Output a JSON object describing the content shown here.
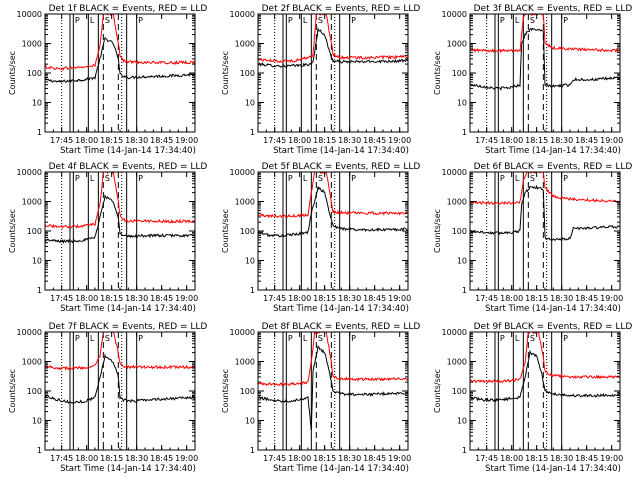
{
  "figure": {
    "ylabel": "Counts/sec",
    "xlabel": "Start Time (14-Jan-14 17:34:40)",
    "xtick_labels": [
      "17:45",
      "18:00",
      "18:15",
      "18:30",
      "18:45",
      "19:00"
    ],
    "ytick_labels": [
      "1",
      "10",
      "100",
      "1000",
      "10000"
    ],
    "colors": {
      "events": "#000000",
      "lld": "#ff0000",
      "axes": "#000000"
    }
  },
  "chart_data": [
    {
      "type": "line",
      "title": "Det 1f BLACK = Events, RED = LLD",
      "xlabel": "Start Time (14-Jan-14 17:34:40)",
      "ylabel": "Counts/sec",
      "x_unit": "minutes since start",
      "xlim": [
        0,
        90
      ],
      "ylim": [
        1,
        10000
      ],
      "yscale": "log",
      "solid_lines": [
        15,
        17,
        26,
        32,
        49,
        55
      ],
      "dashed_lines": [
        35,
        44
      ],
      "dotted_lines": [
        10,
        46
      ],
      "flag_letters": [
        "P",
        "L",
        "S",
        "P"
      ],
      "series": [
        {
          "name": "Events",
          "color": "#000000",
          "x": [
            0,
            8,
            16,
            24,
            30,
            33,
            36,
            41,
            44,
            45,
            47,
            50,
            60,
            75,
            90
          ],
          "y": [
            60,
            50,
            55,
            60,
            70,
            300,
            1500,
            1000,
            300,
            90,
            80,
            70,
            75,
            80,
            90
          ]
        },
        {
          "name": "LLD",
          "color": "#ff0000",
          "x": [
            0,
            8,
            16,
            24,
            30,
            33,
            35,
            38,
            41,
            44,
            45,
            47,
            50,
            60,
            75,
            90
          ],
          "y": [
            160,
            140,
            150,
            160,
            180,
            800,
            10000,
            10000,
            10000,
            1000,
            400,
            260,
            240,
            230,
            220,
            230
          ]
        }
      ]
    },
    {
      "type": "line",
      "title": "Det 2f BLACK = Events, RED = LLD",
      "xlabel": "Start Time (14-Jan-14 17:34:40)",
      "ylabel": "Counts/sec",
      "x_unit": "minutes since start",
      "xlim": [
        0,
        90
      ],
      "ylim": [
        1,
        10000
      ],
      "yscale": "log",
      "solid_lines": [
        15,
        17,
        26,
        32,
        49,
        55
      ],
      "dashed_lines": [
        35,
        44
      ],
      "dotted_lines": [
        10,
        46
      ],
      "flag_letters": [
        "P",
        "L",
        "S",
        "P"
      ],
      "series": [
        {
          "name": "Events",
          "color": "#000000",
          "x": [
            0,
            8,
            16,
            24,
            30,
            33,
            36,
            40,
            43,
            45,
            47,
            50,
            60,
            75,
            90
          ],
          "y": [
            200,
            180,
            170,
            180,
            190,
            220,
            3000,
            2000,
            500,
            260,
            250,
            240,
            240,
            250,
            260
          ]
        },
        {
          "name": "LLD",
          "color": "#ff0000",
          "x": [
            0,
            8,
            16,
            24,
            30,
            33,
            35,
            38,
            41,
            44,
            45,
            47,
            50,
            60,
            75,
            90
          ],
          "y": [
            290,
            260,
            250,
            270,
            340,
            400,
            10000,
            10000,
            10000,
            1000,
            450,
            350,
            340,
            330,
            340,
            350
          ]
        }
      ]
    },
    {
      "type": "line",
      "title": "Det 3f BLACK = Events, RED = LLD",
      "xlabel": "Start Time (14-Jan-14 17:34:40)",
      "ylabel": "Counts/sec",
      "x_unit": "minutes since start",
      "xlim": [
        0,
        90
      ],
      "ylim": [
        1,
        10000
      ],
      "yscale": "log",
      "solid_lines": [
        15,
        17,
        26,
        32,
        49,
        55
      ],
      "dashed_lines": [
        35,
        44
      ],
      "dotted_lines": [
        10,
        46
      ],
      "flag_letters": [
        "P",
        "L",
        "S",
        "P"
      ],
      "series": [
        {
          "name": "Events",
          "color": "#000000",
          "x": [
            0,
            8,
            16,
            24,
            30,
            31,
            33,
            36,
            40,
            44,
            45,
            50,
            60,
            62,
            75,
            90
          ],
          "y": [
            40,
            35,
            30,
            32,
            40,
            1000,
            2000,
            3000,
            3000,
            2500,
            40,
            35,
            40,
            60,
            60,
            70
          ]
        },
        {
          "name": "LLD",
          "color": "#ff0000",
          "x": [
            0,
            8,
            16,
            24,
            30,
            32,
            34,
            40,
            44,
            45,
            50,
            60,
            75,
            90
          ],
          "y": [
            600,
            580,
            560,
            570,
            600,
            8000,
            10000,
            10000,
            10000,
            1000,
            700,
            650,
            600,
            580
          ]
        }
      ]
    },
    {
      "type": "line",
      "title": "Det 4f BLACK = Events, RED = LLD",
      "xlabel": "Start Time (14-Jan-14 17:34:40)",
      "ylabel": "Counts/sec",
      "x_unit": "minutes since start",
      "xlim": [
        0,
        90
      ],
      "ylim": [
        1,
        10000
      ],
      "yscale": "log",
      "solid_lines": [
        15,
        17,
        26,
        32,
        49,
        55
      ],
      "dashed_lines": [
        35,
        44
      ],
      "dotted_lines": [
        10,
        46
      ],
      "flag_letters": [
        "P",
        "L",
        "S",
        "P"
      ],
      "series": [
        {
          "name": "Events",
          "color": "#000000",
          "x": [
            0,
            8,
            16,
            24,
            30,
            33,
            36,
            41,
            44,
            45,
            47,
            50,
            60,
            75,
            90
          ],
          "y": [
            50,
            45,
            45,
            50,
            60,
            300,
            1500,
            1000,
            300,
            80,
            70,
            65,
            70,
            70,
            70
          ]
        },
        {
          "name": "LLD",
          "color": "#ff0000",
          "x": [
            0,
            8,
            16,
            24,
            30,
            33,
            35,
            38,
            41,
            44,
            45,
            47,
            50,
            60,
            75,
            90
          ],
          "y": [
            160,
            140,
            140,
            150,
            170,
            800,
            10000,
            10000,
            10000,
            1000,
            350,
            240,
            220,
            220,
            210,
            220
          ]
        }
      ]
    },
    {
      "type": "line",
      "title": "Det 5f BLACK = Events, RED = LLD",
      "xlabel": "Start Time (14-Jan-14 17:34:40)",
      "ylabel": "Counts/sec",
      "x_unit": "minutes since start",
      "xlim": [
        0,
        90
      ],
      "ylim": [
        1,
        10000
      ],
      "yscale": "log",
      "solid_lines": [
        15,
        17,
        26,
        32,
        49,
        55
      ],
      "dashed_lines": [
        35,
        44
      ],
      "dotted_lines": [
        10,
        46
      ],
      "flag_letters": [
        "P",
        "L",
        "S",
        "P"
      ],
      "series": [
        {
          "name": "Events",
          "color": "#000000",
          "x": [
            0,
            8,
            16,
            24,
            30,
            32,
            36,
            40,
            43,
            45,
            50,
            60,
            75,
            90
          ],
          "y": [
            90,
            70,
            70,
            80,
            90,
            400,
            3000,
            2000,
            400,
            150,
            120,
            110,
            110,
            115
          ]
        },
        {
          "name": "LLD",
          "color": "#ff0000",
          "x": [
            0,
            8,
            16,
            24,
            30,
            32,
            34,
            38,
            41,
            44,
            45,
            50,
            60,
            75,
            90
          ],
          "y": [
            350,
            320,
            320,
            330,
            360,
            2000,
            10000,
            10000,
            10000,
            1000,
            450,
            420,
            400,
            400,
            410
          ]
        }
      ]
    },
    {
      "type": "line",
      "title": "Det 6f BLACK = Events, RED = LLD",
      "xlabel": "Start Time (14-Jan-14 17:34:40)",
      "ylabel": "Counts/sec",
      "x_unit": "minutes since start",
      "xlim": [
        0,
        90
      ],
      "ylim": [
        1,
        10000
      ],
      "yscale": "log",
      "solid_lines": [
        15,
        17,
        26,
        32,
        49,
        55
      ],
      "dashed_lines": [
        35,
        44
      ],
      "dotted_lines": [
        10,
        46
      ],
      "flag_letters": [
        "P",
        "L",
        "S",
        "P"
      ],
      "series": [
        {
          "name": "Events",
          "color": "#000000",
          "x": [
            0,
            8,
            16,
            24,
            30,
            31,
            33,
            36,
            40,
            44,
            45,
            50,
            60,
            62,
            75,
            90
          ],
          "y": [
            100,
            90,
            85,
            90,
            100,
            800,
            2000,
            3000,
            3000,
            2500,
            60,
            50,
            55,
            120,
            130,
            140
          ]
        },
        {
          "name": "LLD",
          "color": "#ff0000",
          "x": [
            0,
            8,
            16,
            24,
            30,
            32,
            34,
            40,
            44,
            45,
            50,
            60,
            75,
            90
          ],
          "y": [
            900,
            900,
            900,
            900,
            950,
            5000,
            10000,
            10000,
            10000,
            3000,
            1500,
            1200,
            1100,
            1000
          ]
        }
      ]
    },
    {
      "type": "line",
      "title": "Det 7f BLACK = Events, RED = LLD",
      "xlabel": "Start Time (14-Jan-14 17:34:40)",
      "ylabel": "Counts/sec",
      "x_unit": "minutes since start",
      "xlim": [
        0,
        90
      ],
      "ylim": [
        1,
        10000
      ],
      "yscale": "log",
      "solid_lines": [
        15,
        17,
        26,
        32,
        49,
        55
      ],
      "dashed_lines": [
        35,
        44
      ],
      "dotted_lines": [
        10,
        46
      ],
      "flag_letters": [
        "P",
        "L",
        "S",
        "P"
      ],
      "series": [
        {
          "name": "Events",
          "color": "#000000",
          "x": [
            0,
            8,
            16,
            24,
            30,
            33,
            36,
            41,
            44,
            45,
            47,
            50,
            60,
            75,
            90
          ],
          "y": [
            70,
            50,
            40,
            45,
            60,
            300,
            1500,
            1000,
            300,
            60,
            50,
            45,
            50,
            55,
            60
          ]
        },
        {
          "name": "LLD",
          "color": "#ff0000",
          "x": [
            0,
            8,
            16,
            24,
            30,
            33,
            35,
            38,
            41,
            44,
            45,
            47,
            50,
            60,
            75,
            90
          ],
          "y": [
            700,
            600,
            600,
            620,
            700,
            1500,
            10000,
            10000,
            10000,
            2000,
            900,
            700,
            650,
            650,
            640,
            650
          ]
        }
      ]
    },
    {
      "type": "line",
      "title": "Det 8f BLACK = Events, RED = LLD",
      "xlabel": "Start Time (14-Jan-14 17:34:40)",
      "ylabel": "Counts/sec",
      "x_unit": "minutes since start",
      "xlim": [
        0,
        90
      ],
      "ylim": [
        1,
        10000
      ],
      "yscale": "log",
      "solid_lines": [
        15,
        17,
        26,
        32,
        49,
        55
      ],
      "dashed_lines": [
        35,
        44
      ],
      "dotted_lines": [
        10,
        46
      ],
      "flag_letters": [
        "P",
        "L",
        "S",
        "P"
      ],
      "series": [
        {
          "name": "Events",
          "color": "#000000",
          "x": [
            0,
            8,
            16,
            24,
            30,
            32,
            33,
            36,
            40,
            43,
            45,
            50,
            60,
            75,
            90
          ],
          "y": [
            60,
            50,
            45,
            50,
            60,
            5,
            500,
            3000,
            2000,
            400,
            100,
            80,
            75,
            80,
            85
          ]
        },
        {
          "name": "LLD",
          "color": "#ff0000",
          "x": [
            0,
            8,
            16,
            24,
            30,
            32,
            34,
            38,
            41,
            44,
            45,
            50,
            60,
            75,
            90
          ],
          "y": [
            180,
            170,
            170,
            180,
            200,
            1000,
            10000,
            10000,
            10000,
            1000,
            300,
            260,
            250,
            250,
            260
          ]
        }
      ]
    },
    {
      "type": "line",
      "title": "Det 9f BLACK = Events, RED = LLD",
      "xlabel": "Start Time (14-Jan-14 17:34:40)",
      "ylabel": "Counts/sec",
      "x_unit": "minutes since start",
      "xlim": [
        0,
        90
      ],
      "ylim": [
        1,
        10000
      ],
      "yscale": "log",
      "solid_lines": [
        15,
        17,
        26,
        32,
        49,
        55
      ],
      "dashed_lines": [
        35,
        44
      ],
      "dotted_lines": [
        10,
        46
      ],
      "flag_letters": [
        "P",
        "L",
        "S",
        "P"
      ],
      "series": [
        {
          "name": "Events",
          "color": "#000000",
          "x": [
            0,
            8,
            16,
            24,
            30,
            33,
            36,
            40,
            43,
            45,
            50,
            60,
            75,
            90
          ],
          "y": [
            60,
            50,
            50,
            55,
            60,
            300,
            2000,
            1500,
            400,
            100,
            80,
            70,
            70,
            75
          ]
        },
        {
          "name": "LLD",
          "color": "#ff0000",
          "x": [
            0,
            8,
            16,
            24,
            30,
            33,
            35,
            38,
            41,
            44,
            45,
            50,
            60,
            75,
            90
          ],
          "y": [
            220,
            210,
            210,
            220,
            250,
            900,
            10000,
            10000,
            10000,
            1500,
            450,
            330,
            300,
            300,
            300
          ]
        }
      ]
    }
  ]
}
